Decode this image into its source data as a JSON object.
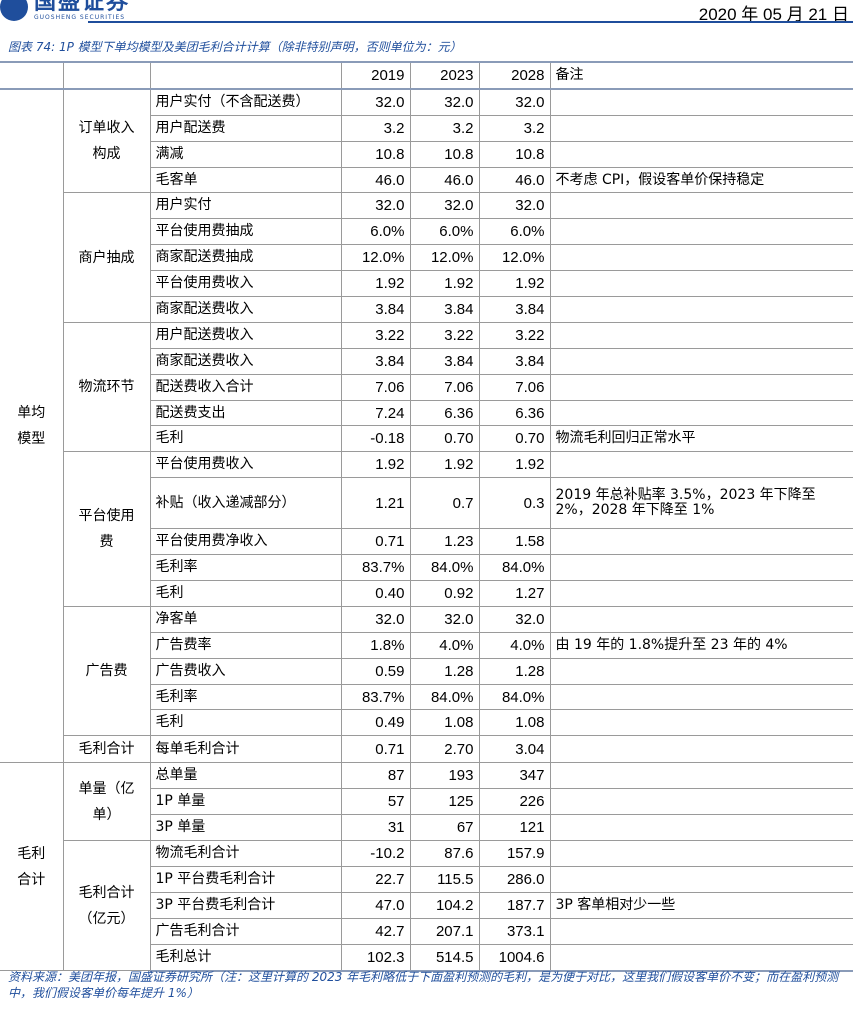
{
  "header": {
    "logo_cn": "国盛证券",
    "logo_en": "GUOSHENG SECURITIES",
    "date": "2020 年 05 月 21 日"
  },
  "caption": "图表 74: 1P 模型下单均模型及美团毛利合计计算（除非特别声明，否则单位为：元）",
  "columns": [
    "2019",
    "2023",
    "2028",
    "备注"
  ],
  "sections": [
    {
      "label": "单均模型",
      "groups": [
        {
          "label": "订单收入构成",
          "rows": [
            {
              "item": "用户实付（不含配送费）",
              "v": [
                "32.0",
                "32.0",
                "32.0"
              ],
              "note": ""
            },
            {
              "item": "用户配送费",
              "v": [
                "3.2",
                "3.2",
                "3.2"
              ],
              "note": ""
            },
            {
              "item": "满减",
              "v": [
                "10.8",
                "10.8",
                "10.8"
              ],
              "note": ""
            },
            {
              "item": "毛客单",
              "v": [
                "46.0",
                "46.0",
                "46.0"
              ],
              "note": "不考虑 CPI，假设客单价保持稳定"
            }
          ]
        },
        {
          "label": "商户抽成",
          "rows": [
            {
              "item": "用户实付",
              "v": [
                "32.0",
                "32.0",
                "32.0"
              ],
              "note": ""
            },
            {
              "item": "平台使用费抽成",
              "v": [
                "6.0%",
                "6.0%",
                "6.0%"
              ],
              "note": ""
            },
            {
              "item": "商家配送费抽成",
              "v": [
                "12.0%",
                "12.0%",
                "12.0%"
              ],
              "note": ""
            },
            {
              "item": "平台使用费收入",
              "v": [
                "1.92",
                "1.92",
                "1.92"
              ],
              "note": ""
            },
            {
              "item": "商家配送费收入",
              "v": [
                "3.84",
                "3.84",
                "3.84"
              ],
              "note": ""
            }
          ]
        },
        {
          "label": "物流环节",
          "rows": [
            {
              "item": "用户配送费收入",
              "v": [
                "3.22",
                "3.22",
                "3.22"
              ],
              "note": ""
            },
            {
              "item": "商家配送费收入",
              "v": [
                "3.84",
                "3.84",
                "3.84"
              ],
              "note": ""
            },
            {
              "item": "配送费收入合计",
              "v": [
                "7.06",
                "7.06",
                "7.06"
              ],
              "note": ""
            },
            {
              "item": "配送费支出",
              "v": [
                "7.24",
                "6.36",
                "6.36"
              ],
              "note": ""
            },
            {
              "item": "毛利",
              "v": [
                "-0.18",
                "0.70",
                "0.70"
              ],
              "note": "物流毛利回归正常水平"
            }
          ]
        },
        {
          "label": "平台使用费",
          "rows": [
            {
              "item": "平台使用费收入",
              "v": [
                "1.92",
                "1.92",
                "1.92"
              ],
              "note": ""
            },
            {
              "item": "补贴（收入递减部分）",
              "v": [
                "1.21",
                "0.7",
                "0.3"
              ],
              "note": "2019 年总补贴率 3.5%，2023 年下降至 2%，2028 年下降至 1%"
            },
            {
              "item": "平台使用费净收入",
              "v": [
                "0.71",
                "1.23",
                "1.58"
              ],
              "note": ""
            },
            {
              "item": "毛利率",
              "v": [
                "83.7%",
                "84.0%",
                "84.0%"
              ],
              "note": ""
            },
            {
              "item": "毛利",
              "v": [
                "0.40",
                "0.92",
                "1.27"
              ],
              "note": ""
            }
          ]
        },
        {
          "label": "广告费",
          "rows": [
            {
              "item": "净客单",
              "v": [
                "32.0",
                "32.0",
                "32.0"
              ],
              "note": ""
            },
            {
              "item": "广告费率",
              "v": [
                "1.8%",
                "4.0%",
                "4.0%"
              ],
              "note": "由 19 年的 1.8%提升至 23 年的 4%"
            },
            {
              "item": "广告费收入",
              "v": [
                "0.59",
                "1.28",
                "1.28"
              ],
              "note": ""
            },
            {
              "item": "毛利率",
              "v": [
                "83.7%",
                "84.0%",
                "84.0%"
              ],
              "note": ""
            },
            {
              "item": "毛利",
              "v": [
                "0.49",
                "1.08",
                "1.08"
              ],
              "note": ""
            }
          ]
        },
        {
          "label": "毛利合计",
          "rows": [
            {
              "item": "每单毛利合计",
              "v": [
                "0.71",
                "2.70",
                "3.04"
              ],
              "note": ""
            }
          ]
        }
      ]
    },
    {
      "label": "毛利合计",
      "groups": [
        {
          "label": "单量（亿单）",
          "rows": [
            {
              "item": "总单量",
              "v": [
                "87",
                "193",
                "347"
              ],
              "note": ""
            },
            {
              "item": "1P 单量",
              "v": [
                "57",
                "125",
                "226"
              ],
              "note": ""
            },
            {
              "item": "3P 单量",
              "v": [
                "31",
                "67",
                "121"
              ],
              "note": ""
            }
          ]
        },
        {
          "label": "毛利合计（亿元）",
          "rows": [
            {
              "item": "物流毛利合计",
              "v": [
                "-10.2",
                "87.6",
                "157.9"
              ],
              "note": ""
            },
            {
              "item": "1P 平台费毛利合计",
              "v": [
                "22.7",
                "115.5",
                "286.0"
              ],
              "note": ""
            },
            {
              "item": "3P 平台费毛利合计",
              "v": [
                "47.0",
                "104.2",
                "187.7"
              ],
              "note": "3P 客单相对少一些"
            },
            {
              "item": "广告毛利合计",
              "v": [
                "42.7",
                "207.1",
                "373.1"
              ],
              "note": ""
            },
            {
              "item": "毛利总计",
              "v": [
                "102.3",
                "514.5",
                "1004.6"
              ],
              "note": ""
            }
          ]
        }
      ]
    }
  ],
  "source": "资料来源：美团年报，国盛证券研究所（注：这里计算的 2023 年毛利略低于下面盈利预测的毛利，是为便于对比，这里我们假设客单价不变；而在盈利预测中，我们假设客单价每年提升 1%）"
}
